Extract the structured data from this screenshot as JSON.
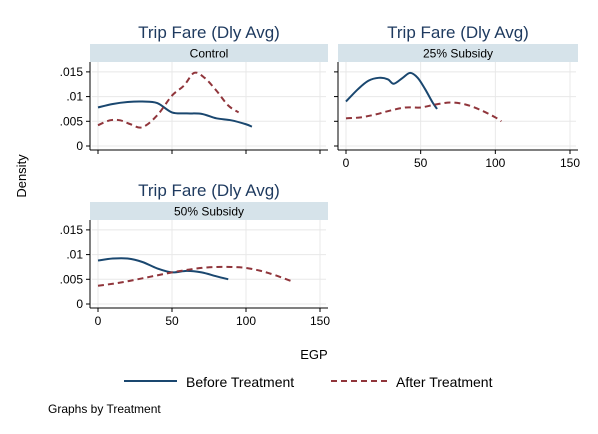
{
  "chart_data": {
    "type": "line",
    "shared": {
      "ylabel": "Density",
      "xlabel": "EGP",
      "xlim": [
        0,
        150
      ],
      "xticks": [
        0,
        50,
        100,
        150
      ],
      "ylim": [
        0,
        0.017
      ],
      "yticks": [
        0,
        0.005,
        0.01,
        0.015
      ],
      "ytick_labels": [
        "0",
        ".005",
        ".01",
        ".015"
      ],
      "grid": true,
      "legend_position": "bottom",
      "note": "Graphs by Treatment",
      "series_styles": [
        {
          "name": "Before Treatment",
          "color": "#1a476f",
          "dash": "solid"
        },
        {
          "name": "After Treatment",
          "color": "#90353b",
          "dash": "dashed"
        }
      ]
    },
    "panels": [
      {
        "title": "Trip Fare (Dly Avg)",
        "subtitle": "Control",
        "show_x_tick_labels": false,
        "series": [
          {
            "name": "Before Treatment",
            "x": [
              0,
              10,
              20,
              30,
              40,
              50,
              60,
              70,
              80,
              90,
              100,
              104
            ],
            "y": [
              0.0078,
              0.0085,
              0.0089,
              0.009,
              0.0087,
              0.0068,
              0.0066,
              0.0065,
              0.0056,
              0.0052,
              0.0044,
              0.0039
            ]
          },
          {
            "name": "After Treatment",
            "x": [
              0,
              8,
              15,
              22,
              30,
              40,
              50,
              58,
              65,
              72,
              80,
              88,
              95
            ],
            "y": [
              0.0042,
              0.0052,
              0.0052,
              0.0044,
              0.0038,
              0.0062,
              0.0102,
              0.0122,
              0.0148,
              0.0138,
              0.0112,
              0.0082,
              0.0068
            ]
          }
        ]
      },
      {
        "title": "Trip Fare (Dly Avg)",
        "subtitle": "25% Subsidy",
        "show_x_tick_labels": true,
        "series": [
          {
            "name": "Before Treatment",
            "x": [
              0,
              8,
              15,
              22,
              28,
              32,
              38,
              43,
              48,
              53,
              58,
              61
            ],
            "y": [
              0.009,
              0.0115,
              0.0132,
              0.0138,
              0.0135,
              0.0126,
              0.0138,
              0.0148,
              0.0138,
              0.0115,
              0.0088,
              0.0075
            ]
          },
          {
            "name": "After Treatment",
            "x": [
              0,
              10,
              20,
              30,
              40,
              50,
              60,
              70,
              80,
              90,
              100,
              104
            ],
            "y": [
              0.0056,
              0.0058,
              0.0064,
              0.0072,
              0.0078,
              0.0078,
              0.0084,
              0.0088,
              0.0084,
              0.0073,
              0.0058,
              0.005
            ]
          }
        ]
      },
      {
        "title": "Trip Fare (Dly Avg)",
        "subtitle": "50% Subsidy",
        "show_x_tick_labels": true,
        "series": [
          {
            "name": "Before Treatment",
            "x": [
              0,
              10,
              20,
              30,
              40,
              50,
              60,
              70,
              80,
              88
            ],
            "y": [
              0.0088,
              0.0092,
              0.0092,
              0.0085,
              0.0072,
              0.0064,
              0.0067,
              0.0064,
              0.0056,
              0.005
            ]
          },
          {
            "name": "After Treatment",
            "x": [
              0,
              10,
              20,
              30,
              40,
              50,
              60,
              70,
              80,
              90,
              100,
              110,
              120,
              131
            ],
            "y": [
              0.0037,
              0.0041,
              0.0046,
              0.0052,
              0.0058,
              0.0064,
              0.0069,
              0.0073,
              0.0075,
              0.0075,
              0.0073,
              0.0067,
              0.0058,
              0.0046
            ]
          }
        ]
      }
    ]
  }
}
